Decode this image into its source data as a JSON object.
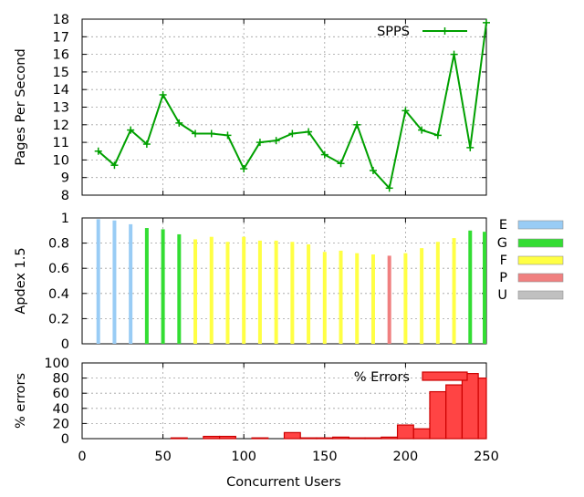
{
  "chart_data": [
    {
      "type": "line",
      "ylabel": "Pages Per Second",
      "ylim": [
        8,
        18
      ],
      "yticks": [
        8,
        9,
        10,
        11,
        12,
        13,
        14,
        15,
        16,
        17,
        18
      ],
      "xlim": [
        0,
        250
      ],
      "xticks": [
        0,
        50,
        100,
        150,
        200,
        250
      ],
      "show_x_tick_labels": false,
      "grid": true,
      "legend_placement": "top-right",
      "series": [
        {
          "name": "SPPS",
          "color": "#00a000",
          "x": [
            10,
            20,
            30,
            40,
            50,
            60,
            70,
            80,
            90,
            100,
            110,
            120,
            130,
            140,
            150,
            160,
            170,
            180,
            190,
            200,
            210,
            220,
            230,
            240,
            250
          ],
          "y": [
            10.5,
            9.7,
            11.7,
            10.9,
            13.7,
            12.1,
            11.5,
            11.5,
            11.4,
            9.5,
            11.0,
            11.1,
            11.5,
            11.6,
            10.3,
            9.8,
            12.0,
            9.4,
            8.4,
            12.8,
            11.7,
            11.4,
            16.0,
            10.7,
            17.8
          ]
        }
      ]
    },
    {
      "type": "bar",
      "ylabel": "Apdex 1.5",
      "ylim": [
        0,
        1
      ],
      "yticks": [
        "0",
        "0.2",
        "0.4",
        "0.6",
        "0.8",
        "1"
      ],
      "ytick_values": [
        0,
        0.2,
        0.4,
        0.6,
        0.8,
        1.0
      ],
      "xlim": [
        0,
        250
      ],
      "grid": true,
      "legend_placement": "right-outside",
      "legend": [
        {
          "label": "E",
          "color": "#99ccf5"
        },
        {
          "label": "G",
          "color": "#33dd33"
        },
        {
          "label": "F",
          "color": "#ffff44"
        },
        {
          "label": "P",
          "color": "#f08080"
        },
        {
          "label": "U",
          "color": "#c0c0c0"
        }
      ],
      "bars": [
        {
          "x": 10,
          "value": 0.99,
          "class": "E"
        },
        {
          "x": 20,
          "value": 0.98,
          "class": "E"
        },
        {
          "x": 30,
          "value": 0.95,
          "class": "E"
        },
        {
          "x": 40,
          "value": 0.92,
          "class": "G"
        },
        {
          "x": 50,
          "value": 0.91,
          "class": "G"
        },
        {
          "x": 60,
          "value": 0.87,
          "class": "G"
        },
        {
          "x": 70,
          "value": 0.83,
          "class": "F"
        },
        {
          "x": 80,
          "value": 0.85,
          "class": "F"
        },
        {
          "x": 90,
          "value": 0.81,
          "class": "F"
        },
        {
          "x": 100,
          "value": 0.85,
          "class": "F"
        },
        {
          "x": 110,
          "value": 0.82,
          "class": "F"
        },
        {
          "x": 120,
          "value": 0.82,
          "class": "F"
        },
        {
          "x": 130,
          "value": 0.81,
          "class": "F"
        },
        {
          "x": 140,
          "value": 0.79,
          "class": "F"
        },
        {
          "x": 150,
          "value": 0.73,
          "class": "F"
        },
        {
          "x": 160,
          "value": 0.74,
          "class": "F"
        },
        {
          "x": 170,
          "value": 0.72,
          "class": "F"
        },
        {
          "x": 180,
          "value": 0.71,
          "class": "F"
        },
        {
          "x": 190,
          "value": 0.7,
          "class": "P"
        },
        {
          "x": 200,
          "value": 0.72,
          "class": "F"
        },
        {
          "x": 210,
          "value": 0.76,
          "class": "F"
        },
        {
          "x": 220,
          "value": 0.81,
          "class": "F"
        },
        {
          "x": 230,
          "value": 0.84,
          "class": "F"
        },
        {
          "x": 240,
          "value": 0.9,
          "class": "G"
        },
        {
          "x": 250,
          "value": 0.89,
          "class": "G"
        }
      ]
    },
    {
      "type": "bar",
      "ylabel": "% errors",
      "xlabel": "Concurrent Users",
      "ylim": [
        0,
        100
      ],
      "yticks": [
        0,
        20,
        40,
        60,
        80,
        100
      ],
      "xlim": [
        0,
        250
      ],
      "xticks": [
        0,
        50,
        100,
        150,
        200,
        250
      ],
      "grid": true,
      "legend_placement": "top-right",
      "series": [
        {
          "name": "% Errors",
          "color": "#ff4444",
          "edge_color": "#cc0000",
          "x": [
            10,
            20,
            30,
            40,
            50,
            60,
            70,
            80,
            90,
            100,
            110,
            120,
            130,
            140,
            150,
            160,
            170,
            180,
            190,
            200,
            210,
            220,
            230,
            240,
            250
          ],
          "values": [
            0,
            0,
            0,
            0,
            0,
            1,
            0,
            3,
            3,
            0,
            1,
            0,
            8,
            1,
            1,
            2,
            1,
            1,
            2,
            18,
            13,
            62,
            71,
            86,
            80
          ]
        }
      ]
    }
  ]
}
